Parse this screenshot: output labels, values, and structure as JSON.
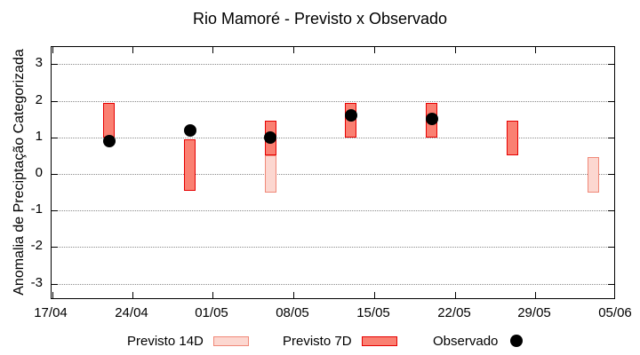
{
  "title": "Rio Mamoré - Previsto x Observado",
  "colors": {
    "previsto14_fill": "#fcd7d0",
    "previsto14_border": "#f08878",
    "previsto7_fill": "#fa8072",
    "previsto7_border": "#e60000",
    "observado": "#000000",
    "grid": "#8a8a8a",
    "axis": "#000000"
  },
  "legend": {
    "items": [
      {
        "label": "Previsto 14D",
        "swatch": "box-14d"
      },
      {
        "label": "Previsto 7D",
        "swatch": "box-7d"
      },
      {
        "label": "Observado",
        "swatch": "dot"
      }
    ]
  },
  "chart_data": {
    "type": "bar",
    "title": "Rio Mamoré - Previsto x Observado",
    "xlabel": "",
    "ylabel": "Anomalia de Preciptação Categorizada",
    "ylim": [
      -3.45,
      3.47
    ],
    "grid": true,
    "legend_position": "bottom",
    "y_ticks": [
      3,
      2,
      1,
      0,
      -1,
      -2,
      -3
    ],
    "x_ticks": [
      "17/04",
      "24/04",
      "01/05",
      "08/05",
      "15/05",
      "22/05",
      "29/05",
      "05/06"
    ],
    "x_tick_days": [
      0,
      7,
      14,
      21,
      28,
      35,
      42,
      49
    ],
    "x_axis_span_days": 49,
    "series": [
      {
        "name": "Previsto 14D",
        "type": "range-bar",
        "points": [
          {
            "date": "06/05",
            "day": 19,
            "low": -0.5,
            "high": 0.5
          },
          {
            "date": "03/06",
            "day": 47,
            "low": -0.5,
            "high": 0.45
          }
        ]
      },
      {
        "name": "Previsto 7D",
        "type": "range-bar",
        "points": [
          {
            "date": "22/04",
            "day": 5,
            "low": 1.0,
            "high": 1.95
          },
          {
            "date": "29/04",
            "day": 12,
            "low": -0.45,
            "high": 0.95
          },
          {
            "date": "06/05",
            "day": 19,
            "low": 0.5,
            "high": 1.45
          },
          {
            "date": "13/05",
            "day": 26,
            "low": 1.0,
            "high": 1.95
          },
          {
            "date": "20/05",
            "day": 33,
            "low": 1.0,
            "high": 1.95
          },
          {
            "date": "27/05",
            "day": 40,
            "low": 0.5,
            "high": 1.45
          }
        ]
      },
      {
        "name": "Observado",
        "type": "scatter",
        "points": [
          {
            "date": "22/04",
            "day": 5,
            "value": 0.9
          },
          {
            "date": "29/04",
            "day": 12,
            "value": 1.2
          },
          {
            "date": "06/05",
            "day": 19,
            "value": 1.0
          },
          {
            "date": "13/05",
            "day": 26,
            "value": 1.6
          },
          {
            "date": "20/05",
            "day": 33,
            "value": 1.5
          }
        ]
      }
    ]
  }
}
